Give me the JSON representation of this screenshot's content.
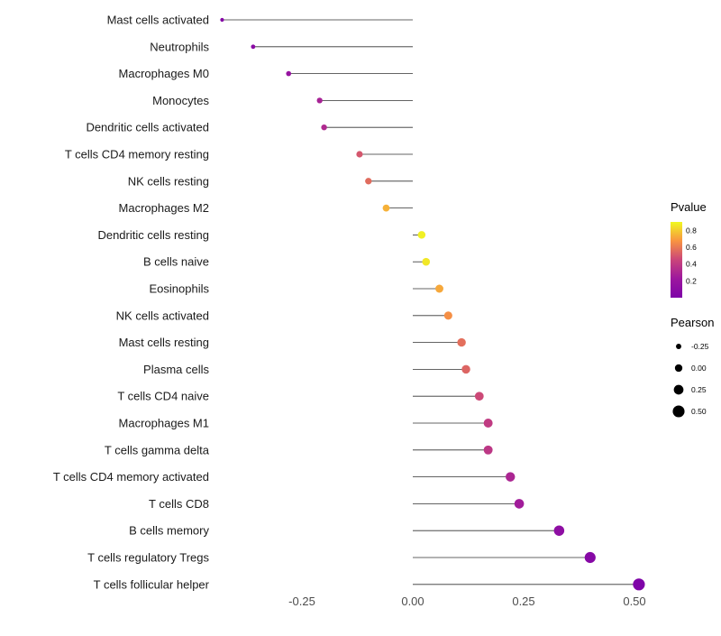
{
  "figure": {
    "background": "#ffffff"
  },
  "chart_data": {
    "type": "lollipop",
    "title": "",
    "xlabel": "",
    "ylabel": "",
    "grid": false,
    "xlim": [
      -0.47,
      0.56
    ],
    "x_ticks": [
      -0.25,
      0.0,
      0.25,
      0.5
    ],
    "x_tick_labels": [
      "-0.25",
      "0.00",
      "0.25",
      "0.50"
    ],
    "stem_color": "#303030",
    "points": [
      {
        "label": "Mast cells activated",
        "pearson": -0.43,
        "pvalue": 0.05
      },
      {
        "label": "Neutrophils",
        "pearson": -0.36,
        "pvalue": 0.09
      },
      {
        "label": "Macrophages M0",
        "pearson": -0.28,
        "pvalue": 0.18
      },
      {
        "label": "Monocytes",
        "pearson": -0.21,
        "pvalue": 0.28
      },
      {
        "label": "Dendritic cells activated",
        "pearson": -0.2,
        "pvalue": 0.32
      },
      {
        "label": "T cells CD4 memory resting",
        "pearson": -0.12,
        "pvalue": 0.5
      },
      {
        "label": "NK cells resting",
        "pearson": -0.1,
        "pvalue": 0.56
      },
      {
        "label": "Macrophages M2",
        "pearson": -0.06,
        "pvalue": 0.74
      },
      {
        "label": "Dendritic cells resting",
        "pearson": 0.02,
        "pvalue": 0.88
      },
      {
        "label": "B cells naive",
        "pearson": 0.03,
        "pvalue": 0.86
      },
      {
        "label": "Eosinophils",
        "pearson": 0.06,
        "pvalue": 0.72
      },
      {
        "label": "NK cells activated",
        "pearson": 0.08,
        "pvalue": 0.66
      },
      {
        "label": "Mast cells resting",
        "pearson": 0.11,
        "pvalue": 0.57
      },
      {
        "label": "Plasma cells",
        "pearson": 0.12,
        "pvalue": 0.54
      },
      {
        "label": "T cells CD4 naive",
        "pearson": 0.15,
        "pvalue": 0.46
      },
      {
        "label": "Macrophages M1",
        "pearson": 0.17,
        "pvalue": 0.4
      },
      {
        "label": "T cells gamma delta",
        "pearson": 0.17,
        "pvalue": 0.38
      },
      {
        "label": "T cells CD4 memory activated",
        "pearson": 0.22,
        "pvalue": 0.3
      },
      {
        "label": "T cells CD8",
        "pearson": 0.24,
        "pvalue": 0.25
      },
      {
        "label": "B cells memory",
        "pearson": 0.33,
        "pvalue": 0.12
      },
      {
        "label": "T cells regulatory Tregs",
        "pearson": 0.4,
        "pvalue": 0.06
      },
      {
        "label": "T cells follicular helper",
        "pearson": 0.51,
        "pvalue": 0.01
      }
    ],
    "color_scale": {
      "title": "Pvalue",
      "domain": [
        0,
        0.9
      ],
      "stops": [
        "#7e03a8",
        "#9c179e",
        "#ca457a",
        "#f89441",
        "#f0f921"
      ],
      "ticks": [
        0.8,
        0.6,
        0.4,
        0.2
      ],
      "tick_labels": [
        "0.8",
        "0.6",
        "0.4",
        "0.2"
      ]
    },
    "size_scale": {
      "title": "Pearson",
      "domain": [
        -0.45,
        0.55
      ],
      "radius_range": [
        2,
        6.8
      ],
      "ticks": [
        -0.25,
        0.0,
        0.25,
        0.5
      ],
      "tick_labels": [
        "-0.25",
        "0.00",
        "0.25",
        "0.50"
      ],
      "legend_dot_color": "#000000"
    }
  }
}
